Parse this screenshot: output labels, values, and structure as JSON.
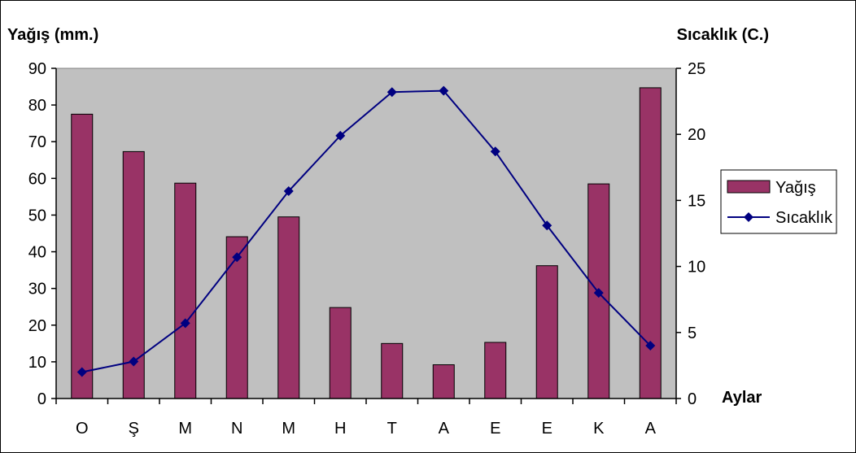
{
  "chart_data": {
    "type": "bar",
    "categories": [
      "O",
      "Ş",
      "M",
      "N",
      "M",
      "H",
      "T",
      "A",
      "E",
      "E",
      "K",
      "A"
    ],
    "series": [
      {
        "name": "Yağış",
        "type": "bar",
        "axis": "left",
        "color": "#993366",
        "values": [
          77.5,
          67.3,
          58.7,
          44.1,
          49.5,
          24.8,
          15.0,
          9.2,
          15.3,
          36.2,
          58.5,
          84.7
        ]
      },
      {
        "name": "Sıcaklık",
        "type": "line",
        "axis": "right",
        "color": "#000080",
        "marker": "diamond",
        "values": [
          2.0,
          2.8,
          5.7,
          10.7,
          15.7,
          19.9,
          23.2,
          23.3,
          18.7,
          13.1,
          8.0,
          4.0
        ]
      }
    ],
    "ylabel_left": "Yağış (mm.)",
    "ylabel_right": "Sıcaklık (C.)",
    "xlabel": "Aylar",
    "ylim_left": [
      0,
      90
    ],
    "ylim_right": [
      0,
      25
    ],
    "yticks_left": [
      0,
      10,
      20,
      30,
      40,
      50,
      60,
      70,
      80,
      90
    ],
    "yticks_right": [
      0,
      5,
      10,
      15,
      20,
      25
    ],
    "plot_background": "#C0C0C0",
    "grid": false,
    "legend_position": "right"
  }
}
